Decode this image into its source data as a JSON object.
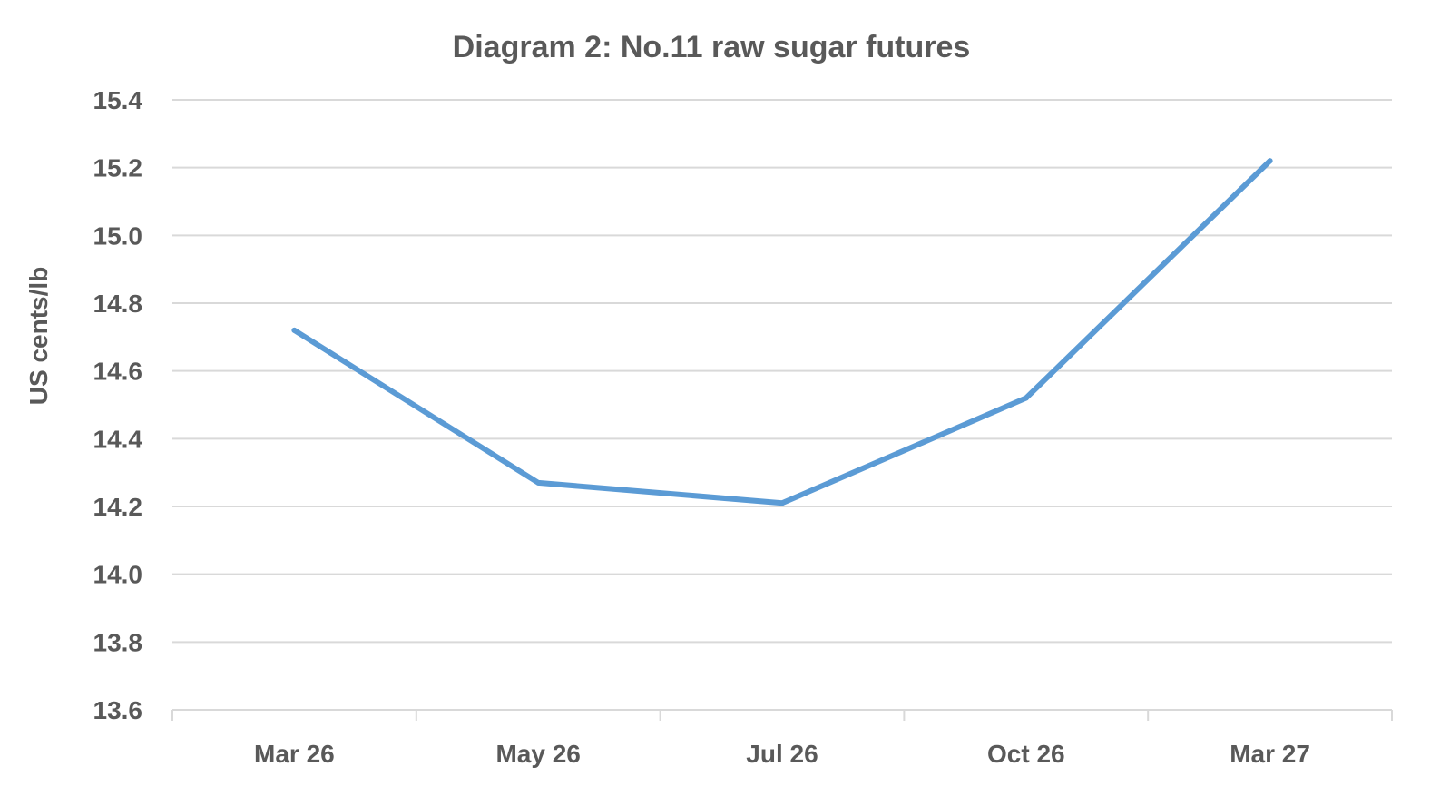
{
  "chart_data": {
    "type": "line",
    "title": "Diagram 2: No.11 raw sugar futures",
    "xlabel": "",
    "ylabel": "US cents/lb",
    "categories": [
      "Mar 26",
      "May 26",
      "Jul 26",
      "Oct 26",
      "Mar 27"
    ],
    "series": [
      {
        "values": [
          14.72,
          14.27,
          14.21,
          14.52,
          15.22
        ],
        "color": "#5b9bd5"
      }
    ],
    "ylim": [
      13.6,
      15.4
    ],
    "yticks": [
      "13.6",
      "13.8",
      "14.0",
      "14.2",
      "14.4",
      "14.6",
      "14.8",
      "15.0",
      "15.2",
      "15.4"
    ],
    "grid": true,
    "legend": "none"
  }
}
